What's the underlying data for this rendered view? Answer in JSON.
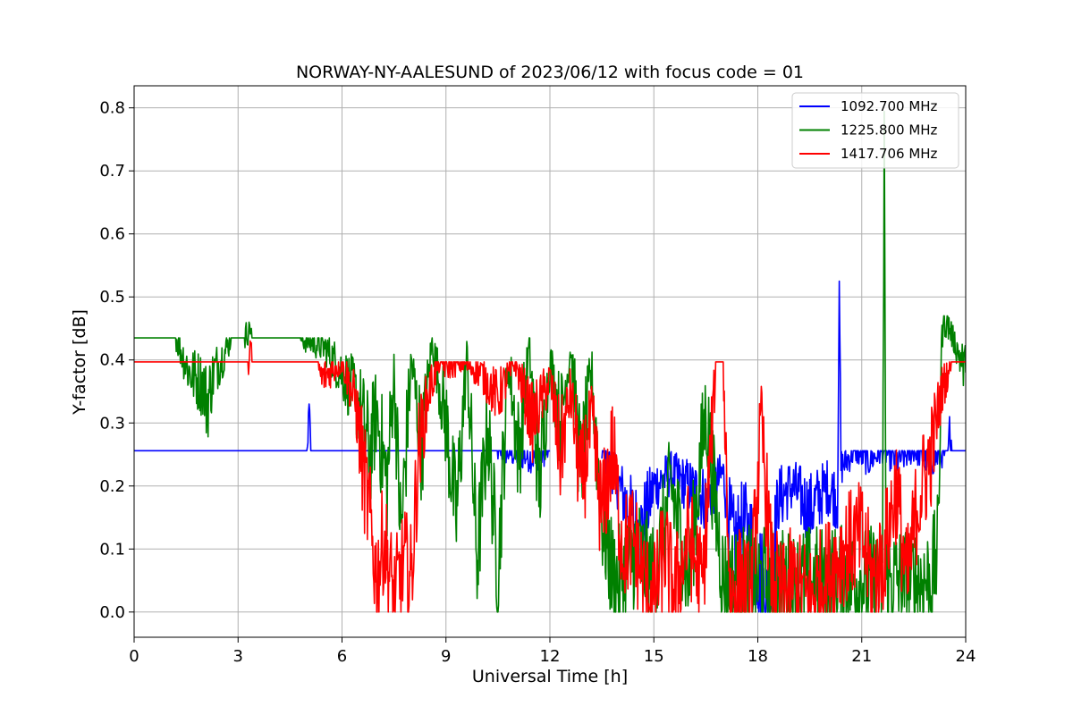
{
  "chart_data": {
    "type": "line",
    "title": "NORWAY-NY-AALESUND of 2023/06/12 with focus code = 01",
    "xlabel": "Universal Time [h]",
    "ylabel": "Y-factor [dB]",
    "xlim": [
      0,
      24
    ],
    "ylim": [
      -0.04,
      0.835
    ],
    "xticks": [
      0,
      3,
      6,
      9,
      12,
      15,
      18,
      21,
      24
    ],
    "yticks": [
      0.0,
      0.1,
      0.2,
      0.3,
      0.4,
      0.5,
      0.6,
      0.7,
      0.8
    ],
    "grid": true,
    "legend_position": "top-right",
    "series": [
      {
        "name": "1092.700 MHz",
        "color": "#0000ff",
        "baseline": 0.256,
        "segments": [
          {
            "x": [
              0,
              5.0,
              5.05,
              5.1,
              10.5,
              11.5,
              12.0
            ],
            "y": [
              0.256,
              0.256,
              0.33,
              0.256,
              0.256,
              0.245,
              0.256
            ]
          },
          {
            "x": [
              13.5,
              14.0,
              14.6,
              15.0,
              15.5,
              16.0,
              16.5,
              17.0,
              17.3,
              17.6,
              18.0,
              18.3,
              18.6,
              19.0,
              19.5,
              20.0,
              20.3,
              20.35,
              20.4,
              20.8,
              21.2,
              21.6,
              22.0,
              22.5,
              23.0,
              23.5,
              23.55,
              23.6,
              24.0
            ],
            "y": [
              0.256,
              0.2,
              0.12,
              0.2,
              0.22,
              0.2,
              0.18,
              0.22,
              0.1,
              0.14,
              0.08,
              0.0,
              0.18,
              0.2,
              0.16,
              0.2,
              0.18,
              0.525,
              0.23,
              0.256,
              0.24,
              0.256,
              0.24,
              0.256,
              0.24,
              0.256,
              0.31,
              0.256,
              0.256
            ]
          }
        ]
      },
      {
        "name": "1225.800 MHz",
        "color": "#008000",
        "baseline": 0.435,
        "segments": [
          {
            "x": [
              0,
              1.2,
              1.6,
              2.0,
              2.1,
              2.3,
              2.6,
              2.8,
              3.2,
              3.35,
              3.4,
              3.6,
              4.8,
              5.5,
              6.0,
              6.5,
              6.8,
              7.0,
              7.3,
              7.5,
              7.7,
              8.0,
              8.3,
              8.6,
              9.0,
              9.3,
              9.6,
              9.9,
              10.2,
              10.5,
              10.8,
              11.1,
              11.4,
              11.7,
              12.0,
              12.3,
              12.6,
              12.9,
              13.2,
              13.5,
              13.8,
              14.0,
              14.5,
              15.0,
              15.5,
              16.0,
              16.5,
              17.0,
              17.5,
              18.0,
              18.5,
              19.0,
              19.5,
              20.0,
              20.5,
              21.0,
              21.6,
              21.65,
              21.7,
              22.0,
              22.5,
              23.0,
              23.2,
              23.3,
              23.4,
              24.0
            ],
            "y": [
              0.435,
              0.435,
              0.38,
              0.36,
              0.33,
              0.38,
              0.41,
              0.435,
              0.435,
              0.46,
              0.435,
              0.435,
              0.435,
              0.42,
              0.38,
              0.33,
              0.25,
              0.32,
              0.2,
              0.38,
              0.12,
              0.4,
              0.26,
              0.43,
              0.3,
              0.15,
              0.41,
              0.08,
              0.3,
              0.06,
              0.4,
              0.25,
              0.42,
              0.2,
              0.4,
              0.3,
              0.42,
              0.22,
              0.38,
              0.15,
              0.06,
              0.05,
              0.1,
              0.05,
              0.2,
              0.05,
              0.32,
              0.05,
              0.05,
              0.05,
              0.05,
              0.04,
              0.05,
              0.05,
              0.05,
              0.05,
              0.05,
              0.8,
              0.05,
              0.05,
              0.05,
              0.05,
              0.1,
              0.43,
              0.47,
              0.38
            ]
          }
        ]
      },
      {
        "name": "1417.706 MHz",
        "color": "#ff0000",
        "baseline": 0.397,
        "segments": [
          {
            "x": [
              0,
              3.3,
              3.35,
              3.4,
              5.3,
              5.4,
              6.0,
              6.4,
              6.6,
              6.8,
              7.0,
              7.2,
              7.5,
              7.8,
              8.0,
              8.2,
              8.5,
              8.8,
              9.0,
              9.5,
              10.0,
              10.5,
              11.0,
              11.5,
              12.0,
              12.3,
              12.6,
              12.9,
              13.2,
              13.5,
              13.8,
              14.1,
              14.4,
              14.7,
              15.0,
              15.3,
              15.6,
              16.0,
              16.4,
              16.8,
              17.0,
              17.2,
              17.5,
              17.8,
              18.1,
              18.4,
              18.7,
              19.0,
              19.5,
              20.0,
              20.5,
              21.0,
              21.3,
              21.6,
              22.0,
              22.3,
              22.6,
              23.0,
              23.3,
              23.6,
              24.0
            ],
            "y": [
              0.397,
              0.397,
              0.43,
              0.397,
              0.397,
              0.37,
              0.397,
              0.33,
              0.23,
              0.15,
              0.05,
              0.12,
              0.02,
              0.08,
              0.05,
              0.25,
              0.35,
              0.397,
              0.39,
              0.397,
              0.38,
              0.34,
              0.397,
              0.3,
              0.37,
              0.25,
              0.35,
              0.2,
              0.3,
              0.15,
              0.26,
              0.1,
              0.12,
              0.05,
              0.02,
              0.1,
              0.03,
              0.12,
              0.04,
              0.397,
              0.397,
              0.02,
              0.05,
              0.02,
              0.3,
              0.06,
              0.02,
              0.05,
              0.02,
              0.06,
              0.1,
              0.12,
              0.05,
              0.08,
              0.2,
              0.04,
              0.17,
              0.25,
              0.35,
              0.397,
              0.397
            ]
          }
        ]
      }
    ]
  }
}
